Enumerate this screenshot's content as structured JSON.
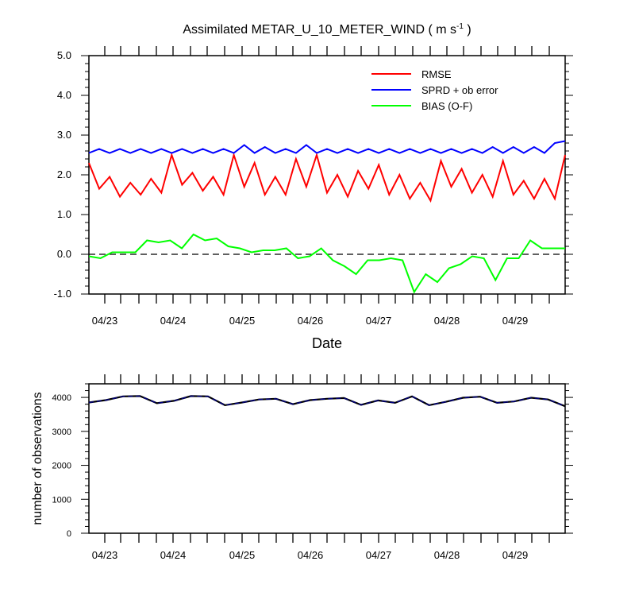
{
  "chart_data": [
    {
      "type": "line",
      "title": "Assimilated METAR_U_10_METER_WIND ( m s",
      "title_superscript": "-1",
      "title_suffix": " )",
      "xlabel": "Date",
      "ylabel": "",
      "ylim": [
        -1.0,
        5.0
      ],
      "yticks": [
        "5.0",
        "4.0",
        "3.0",
        "2.0",
        "1.0",
        "0.0",
        "-1.0"
      ],
      "xticks": [
        "04/23",
        "04/24",
        "04/25",
        "04/26",
        "04/27",
        "04/28",
        "04/29"
      ],
      "zero_line": "dashed",
      "legend_position": "top-right",
      "series": [
        {
          "name": "RMSE",
          "color": "#ff0000",
          "values": [
            2.3,
            1.65,
            1.95,
            1.45,
            1.8,
            1.5,
            1.9,
            1.55,
            2.5,
            1.75,
            2.05,
            1.6,
            1.95,
            1.5,
            2.5,
            1.7,
            2.3,
            1.5,
            1.95,
            1.5,
            2.4,
            1.7,
            2.5,
            1.55,
            2.0,
            1.45,
            2.1,
            1.65,
            2.25,
            1.5,
            2.0,
            1.4,
            1.8,
            1.35,
            2.35,
            1.7,
            2.15,
            1.55,
            2.0,
            1.45,
            2.35,
            1.5,
            1.85,
            1.4,
            1.9,
            1.4,
            2.5
          ]
        },
        {
          "name": "SPRD + ob error",
          "color": "#0000ff",
          "values": [
            2.55,
            2.65,
            2.55,
            2.65,
            2.55,
            2.65,
            2.55,
            2.65,
            2.55,
            2.65,
            2.55,
            2.65,
            2.55,
            2.65,
            2.55,
            2.75,
            2.55,
            2.7,
            2.55,
            2.65,
            2.55,
            2.75,
            2.55,
            2.65,
            2.55,
            2.65,
            2.55,
            2.65,
            2.55,
            2.65,
            2.55,
            2.65,
            2.55,
            2.65,
            2.55,
            2.65,
            2.55,
            2.65,
            2.55,
            2.7,
            2.55,
            2.7,
            2.55,
            2.7,
            2.55,
            2.8,
            2.85
          ]
        },
        {
          "name": "BIAS (O-F)",
          "color": "#00ff00",
          "values": [
            -0.05,
            -0.1,
            0.05,
            0.05,
            0.05,
            0.35,
            0.3,
            0.35,
            0.15,
            0.5,
            0.35,
            0.4,
            0.2,
            0.15,
            0.05,
            0.1,
            0.1,
            0.15,
            -0.1,
            -0.05,
            0.15,
            -0.15,
            -0.3,
            -0.5,
            -0.15,
            -0.15,
            -0.1,
            -0.15,
            -0.95,
            -0.5,
            -0.7,
            -0.35,
            -0.25,
            -0.05,
            -0.1,
            -0.65,
            -0.1,
            -0.1,
            0.35,
            0.15,
            0.15,
            0.15
          ]
        }
      ]
    },
    {
      "type": "line",
      "title": "",
      "xlabel": "",
      "ylabel": "number of observations",
      "ylim": [
        0,
        4400
      ],
      "yticks": [
        "4000",
        "3000",
        "2000",
        "1000",
        "0"
      ],
      "xticks": [
        "04/23",
        "04/24",
        "04/25",
        "04/26",
        "04/27",
        "04/28",
        "04/29"
      ],
      "series": [
        {
          "color": "#000080",
          "values": [
            3850,
            3920,
            4030,
            4040,
            3830,
            3900,
            4040,
            4030,
            3770,
            3850,
            3940,
            3960,
            3800,
            3920,
            3960,
            3980,
            3780,
            3910,
            3840,
            4030,
            3770,
            3870,
            3990,
            4020,
            3840,
            3880,
            3990,
            3940,
            3740
          ]
        }
      ]
    }
  ]
}
